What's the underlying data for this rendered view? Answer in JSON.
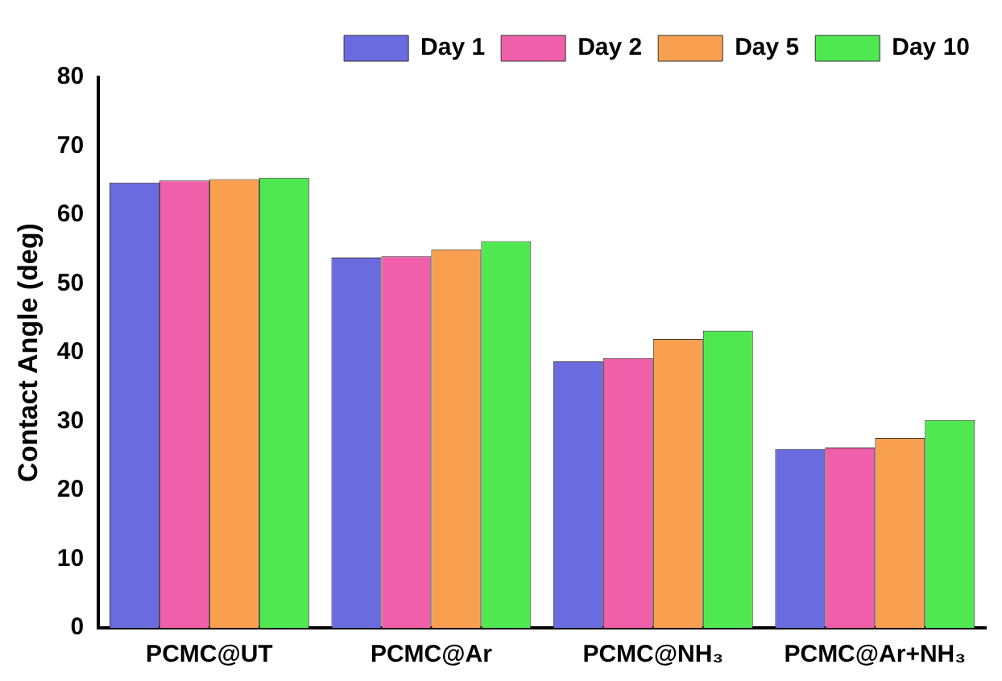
{
  "chart_data": {
    "type": "bar",
    "ylabel": "Contact Angle (deg)",
    "categories": [
      "PCMC@UT",
      "PCMC@Ar",
      "PCMC@NH₃",
      "PCMC@Ar+NH₃"
    ],
    "series": [
      {
        "name": "Day 1",
        "color": "#6b6be0",
        "values": [
          64.7,
          53.8,
          38.7,
          26.0
        ]
      },
      {
        "name": "Day 2",
        "color": "#f060aa",
        "values": [
          65.0,
          54.0,
          39.2,
          26.2
        ]
      },
      {
        "name": "Day 5",
        "color": "#f8a050",
        "values": [
          65.2,
          55.0,
          42.0,
          27.6
        ]
      },
      {
        "name": "Day 10",
        "color": "#50e850",
        "values": [
          65.4,
          56.2,
          43.2,
          30.2
        ]
      }
    ],
    "ylim": [
      0,
      80
    ],
    "yticks": [
      0,
      10,
      20,
      30,
      40,
      50,
      60,
      70,
      80
    ],
    "grid": false,
    "legend": "top right"
  }
}
